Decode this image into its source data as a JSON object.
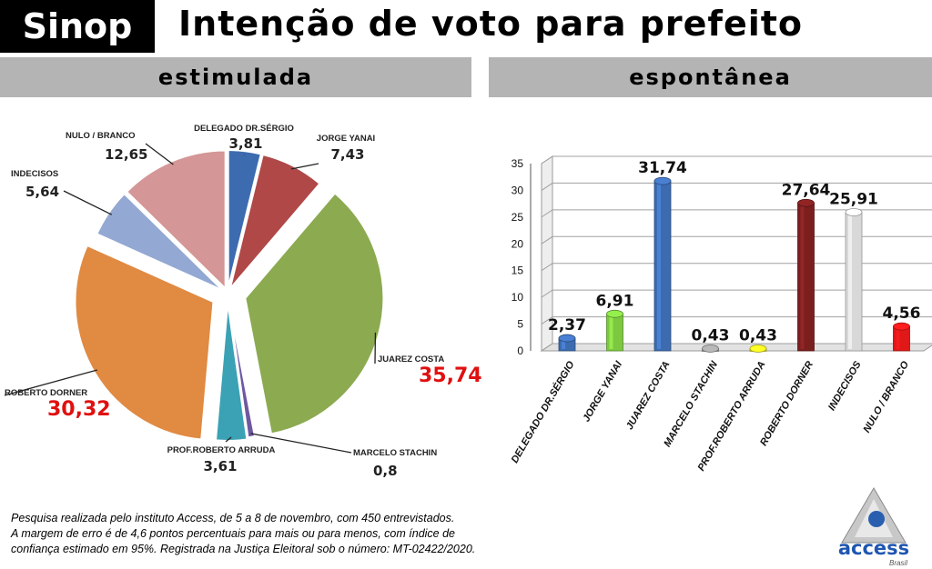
{
  "header": {
    "city": "Sinop",
    "title": "Intenção de voto para prefeito"
  },
  "chart_data": [
    {
      "type": "pie",
      "title": "estimulada",
      "slices": [
        {
          "label": "DELEGADO DR.SÉRGIO",
          "value": 3.81,
          "display": "3,81",
          "color": "#3d6bb0"
        },
        {
          "label": "JORGE YANAI",
          "value": 7.43,
          "display": "7,43",
          "color": "#b04848"
        },
        {
          "label": "JUAREZ COSTA",
          "value": 35.74,
          "display": "35,74",
          "color": "#8caa50"
        },
        {
          "label": "MARCELO STACHIN",
          "value": 0.8,
          "display": "0,8",
          "color": "#6e58a0"
        },
        {
          "label": "PROF.ROBERTO ARRUDA",
          "value": 3.61,
          "display": "3,61",
          "color": "#3aa2b4"
        },
        {
          "label": "ROBERTO DORNER",
          "value": 30.32,
          "display": "30,32",
          "color": "#e08a42"
        },
        {
          "label": "INDECISOS",
          "value": 5.64,
          "display": "5,64",
          "color": "#93a8d2"
        },
        {
          "label": "NULO / BRANCO",
          "value": 12.65,
          "display": "12,65",
          "color": "#d49696"
        }
      ]
    },
    {
      "type": "bar",
      "title": "espontânea",
      "categories": [
        "DELEGADO DR.SÉRGIO",
        "JORGE YANAI",
        "JUAREZ COSTA",
        "MARCELO STACHIN",
        "PROF.ROBERTO ARRUDA",
        "ROBERTO DORNER",
        "INDECISOS",
        "NULO / BRANCO"
      ],
      "values": [
        2.37,
        6.91,
        31.74,
        0.43,
        0.43,
        27.64,
        25.91,
        4.56
      ],
      "display": [
        "2,37",
        "6,91",
        "31,74",
        "0,43",
        "0,43",
        "27,64",
        "25,91",
        "4,56"
      ],
      "colors": [
        "#3d6bb0",
        "#7cc840",
        "#3d6bb0",
        "#9a9a9a",
        "#e0dc20",
        "#7a1e1e",
        "#d8d8d8",
        "#e01818"
      ],
      "ylim": [
        0,
        35
      ],
      "yticks": [
        "0",
        "5",
        "10",
        "15",
        "20",
        "25",
        "30",
        "35"
      ],
      "grid": true
    }
  ],
  "footer": {
    "lines": [
      "Pesquisa realizada pelo instituto Access, de 5 a 8 de novembro, com 450 entrevistados.",
      "A margem de erro é de 4,6 pontos percentuais para mais ou para menos, com índice de",
      "confiança estimado em 95%. Registrada na Justiça Eleitoral sob o número: MT-02422/2020."
    ]
  },
  "logo": {
    "brand": "access",
    "sub": "Brasil"
  }
}
